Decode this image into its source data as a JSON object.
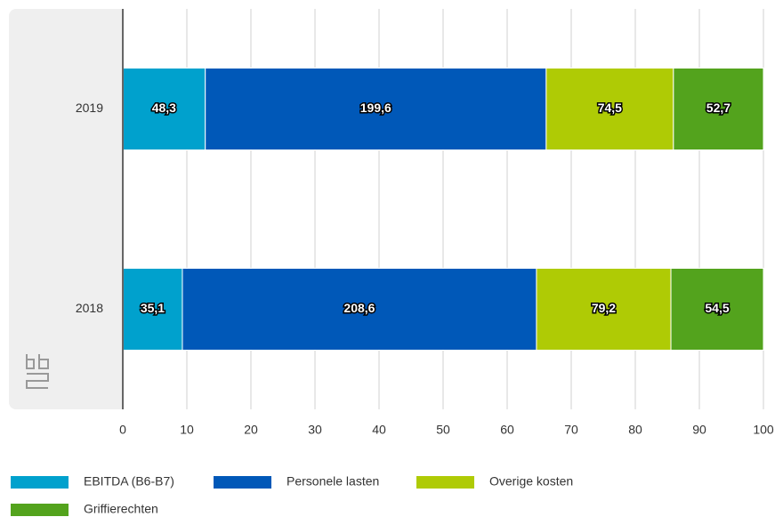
{
  "chart_data": {
    "type": "bar",
    "orientation": "horizontal",
    "stack": "percent",
    "categories": [
      "2019",
      "2018"
    ],
    "series": [
      {
        "name": "EBITDA (B6-B7)",
        "color": "#00a1cd",
        "values": [
          48.3,
          35.1
        ],
        "value_labels": [
          "48,3",
          "35,1"
        ]
      },
      {
        "name": "Personele lasten",
        "color": "#0058b8",
        "values": [
          199.6,
          208.6
        ],
        "value_labels": [
          "199,6",
          "208,6"
        ]
      },
      {
        "name": "Overige kosten",
        "color": "#afcb05",
        "values": [
          74.5,
          79.2
        ],
        "value_labels": [
          "74,5",
          "79,2"
        ]
      },
      {
        "name": "Griffierechten",
        "color": "#53a31d",
        "values": [
          52.7,
          54.5
        ],
        "value_labels": [
          "52,7",
          "54,5"
        ]
      }
    ],
    "xlim": [
      0,
      100
    ],
    "xticks": [
      0,
      10,
      20,
      30,
      40,
      50,
      60,
      70,
      80,
      90,
      100
    ],
    "grid": true,
    "legend": "bottom"
  }
}
